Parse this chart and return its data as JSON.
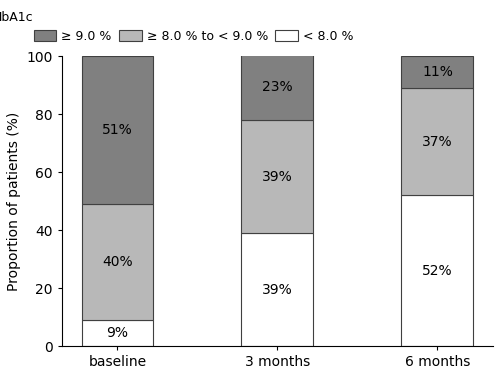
{
  "categories": [
    "baseline",
    "3 months",
    "6 months"
  ],
  "series": {
    "lt8": [
      9,
      39,
      52
    ],
    "8to9": [
      40,
      39,
      37
    ],
    "ge9": [
      51,
      23,
      11
    ]
  },
  "colors": {
    "lt8": "#ffffff",
    "8to9": "#b8b8b8",
    "ge9": "#808080"
  },
  "edgecolor": "#404040",
  "ylabel": "Proportion of patients (%)",
  "ylim": [
    0,
    100
  ],
  "yticks": [
    0,
    20,
    40,
    60,
    80,
    100
  ],
  "legend_labels": [
    "≥ 9.0 %",
    "≥ 8.0 % to < 9.0 %",
    "< 8.0 %"
  ],
  "legend_colors": [
    "#808080",
    "#b8b8b8",
    "#ffffff"
  ],
  "bar_width": 0.45,
  "label_fontsize": 10,
  "tick_fontsize": 10,
  "legend_fontsize": 9,
  "ylabel_fontsize": 10
}
